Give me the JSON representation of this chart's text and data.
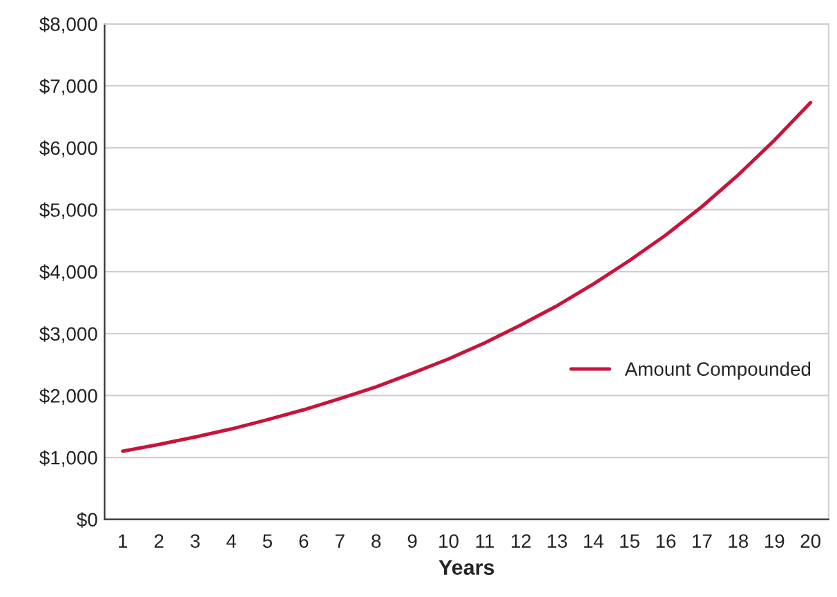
{
  "chart_data": {
    "type": "line",
    "xlabel": "Years",
    "categories": [
      "1",
      "2",
      "3",
      "4",
      "5",
      "6",
      "7",
      "8",
      "9",
      "10",
      "11",
      "12",
      "13",
      "14",
      "15",
      "16",
      "17",
      "18",
      "19",
      "20"
    ],
    "series": [
      {
        "name": "Amount Compounded",
        "color": "#c8143c",
        "values": [
          1100,
          1210,
          1330,
          1460,
          1610,
          1770,
          1950,
          2140,
          2360,
          2590,
          2850,
          3140,
          3450,
          3800,
          4180,
          4590,
          5050,
          5560,
          6120,
          6730
        ]
      }
    ],
    "ylim": [
      0,
      8000
    ],
    "yticks": [
      {
        "value": 0,
        "label": "$0"
      },
      {
        "value": 1000,
        "label": "$1,000"
      },
      {
        "value": 2000,
        "label": "$2,000"
      },
      {
        "value": 3000,
        "label": "$3,000"
      },
      {
        "value": 4000,
        "label": "$4,000"
      },
      {
        "value": 5000,
        "label": "$5,000"
      },
      {
        "value": 6000,
        "label": "$6,000"
      },
      {
        "value": 7000,
        "label": "$7,000"
      },
      {
        "value": 8000,
        "label": "$8,000"
      }
    ],
    "grid": "y",
    "legend": "right",
    "marker": "none",
    "line_style": "solid"
  }
}
